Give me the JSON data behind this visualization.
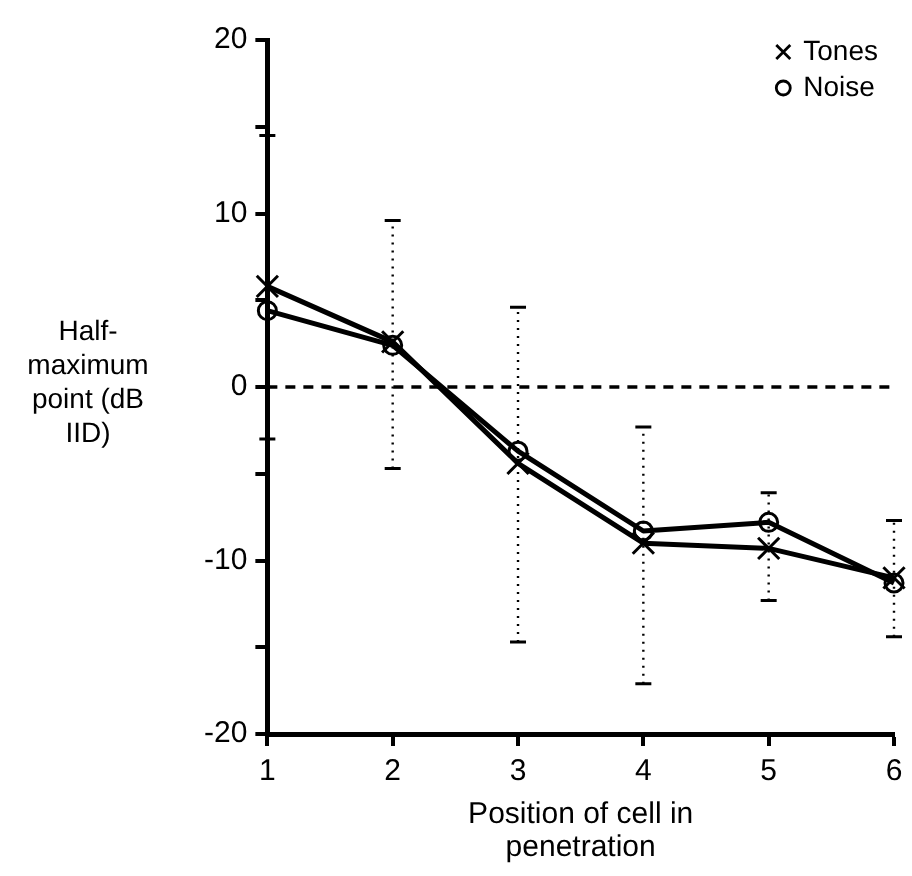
{
  "chart_data": {
    "type": "line",
    "xlabel": "Position of cell in penetration",
    "ylabel": "Half-maximum point (dB IID)",
    "x": [
      1,
      2,
      3,
      4,
      5,
      6
    ],
    "xlim": [
      1,
      6
    ],
    "xticks": [
      1,
      2,
      3,
      4,
      5,
      6
    ],
    "ylim": [
      -20,
      20
    ],
    "yticks": [
      -20,
      {
        "value": -15,
        "label": null
      },
      -10,
      {
        "value": -5,
        "label": null
      },
      0,
      {
        "value": 5,
        "label": null
      },
      10,
      {
        "value": 15,
        "label": null
      },
      20
    ],
    "series": [
      {
        "name": "Tones",
        "color": "#000000",
        "marker": "cross",
        "values": [
          5.8,
          2.6,
          -4.4,
          -9.0,
          -9.3,
          -11.0
        ],
        "errors": [
          [
            -3.0,
            14.5
          ],
          [
            -4.7,
            9.6
          ],
          [
            -14.7,
            4.6
          ],
          [
            -17.1,
            -2.3
          ],
          [
            -12.3,
            -6.1
          ],
          [
            -14.4,
            -7.7
          ]
        ]
      },
      {
        "name": "Noise",
        "color": "#000000",
        "marker": "circle",
        "values": [
          4.4,
          2.4,
          -3.7,
          -8.3,
          -7.8,
          -11.3
        ]
      }
    ],
    "ref_lines": [
      {
        "axis": "y",
        "value": 0,
        "line_style": "dashed"
      }
    ],
    "legend": "top right"
  }
}
